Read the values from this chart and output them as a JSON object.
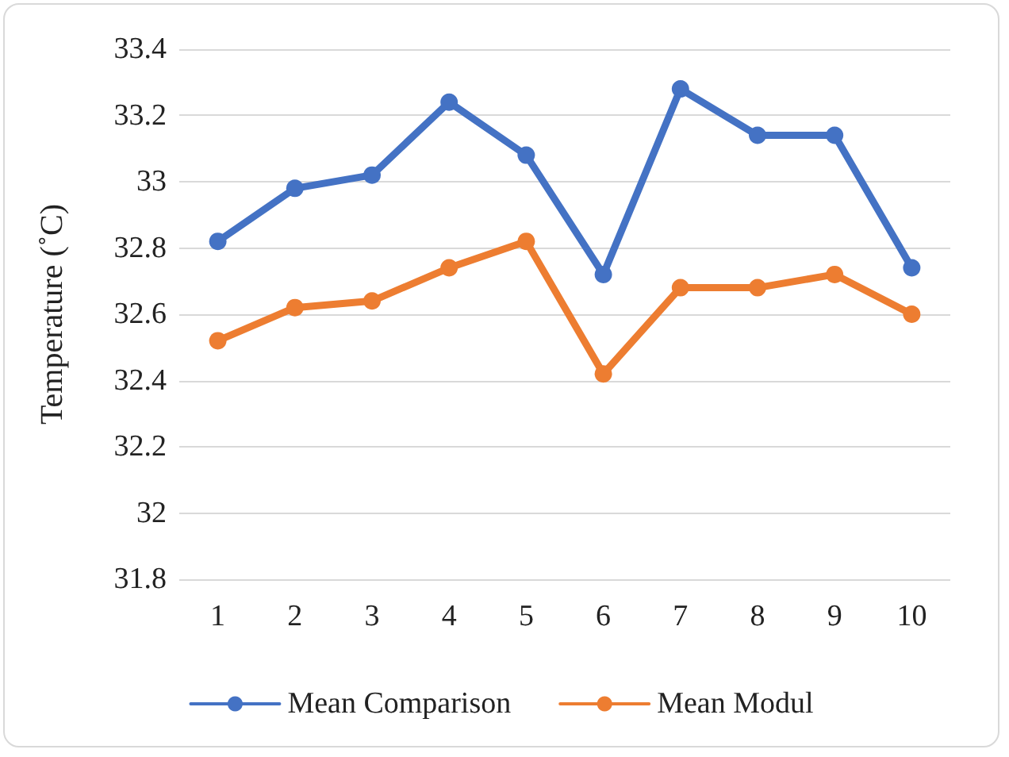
{
  "chart_data": {
    "type": "line",
    "ylabel": "Temperature (˚C)",
    "categories": [
      "1",
      "2",
      "3",
      "4",
      "5",
      "6",
      "7",
      "8",
      "9",
      "10"
    ],
    "series": [
      {
        "name": "Mean Comparison",
        "color": "#4472c4",
        "values": [
          32.82,
          32.98,
          33.02,
          33.24,
          33.08,
          32.72,
          33.28,
          33.14,
          33.14,
          32.74
        ]
      },
      {
        "name": "Mean Modul",
        "color": "#ed7d31",
        "values": [
          32.52,
          32.62,
          32.64,
          32.74,
          32.82,
          32.42,
          32.68,
          32.68,
          32.72,
          32.6
        ]
      }
    ],
    "ylim": [
      31.8,
      33.4
    ],
    "yticks": [
      31.8,
      32,
      32.2,
      32.4,
      32.6,
      32.8,
      33,
      33.2,
      33.4
    ],
    "grid": "y",
    "legend": "bottom",
    "marker": "circle",
    "line_style": "solid"
  }
}
